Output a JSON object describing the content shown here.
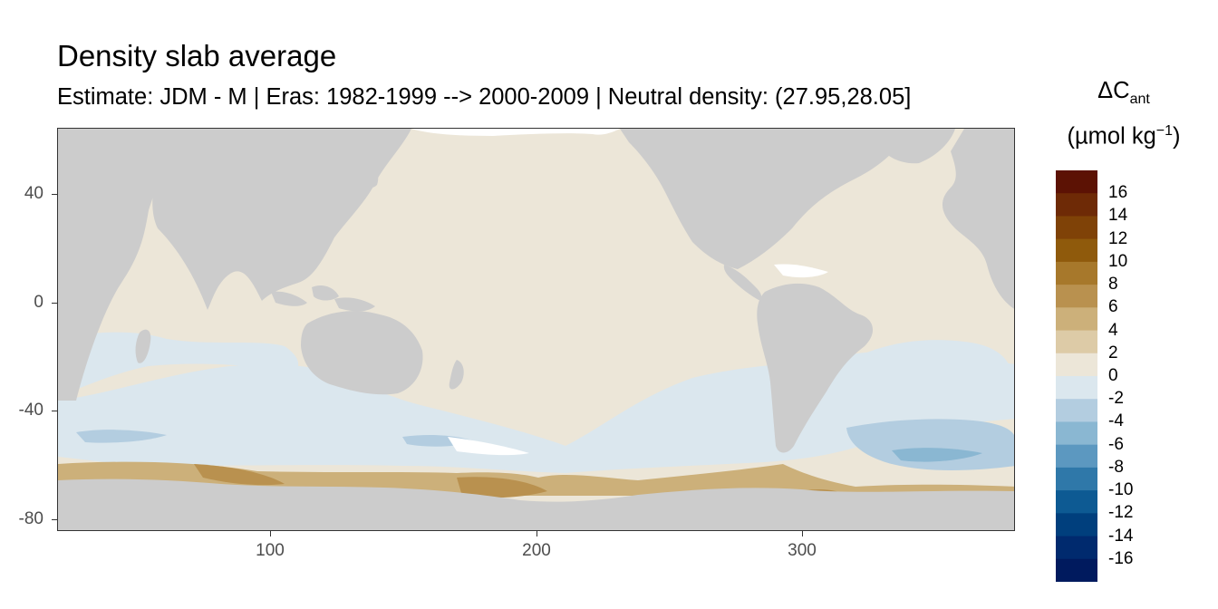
{
  "title": "Density slab average",
  "subtitle": "Estimate: JDM - M | Eras: 1982-1999 --> 2000-2009 | Neutral density: (27.95,28.05]",
  "chart_data": {
    "type": "map",
    "xlim": [
      20,
      380
    ],
    "ylim": [
      -85,
      65
    ],
    "x_ticks": [
      100,
      200,
      300
    ],
    "y_ticks": [
      40,
      0,
      -40,
      -80
    ],
    "grid": true,
    "land_color": "#cccccc",
    "legend": {
      "position": "right",
      "title_main": "ΔC",
      "title_sub": "ant",
      "unit_prefix": "(µmol kg",
      "unit_sup": "−1",
      "unit_suffix": ")",
      "labels": [
        "16",
        "14",
        "12",
        "10",
        "8",
        "6",
        "4",
        "2",
        "0",
        "-2",
        "-4",
        "-6",
        "-8",
        "-10",
        "-12",
        "-14",
        "-16"
      ],
      "colors": [
        "#5c1204",
        "#6e2a06",
        "#7f4207",
        "#8f5a0c",
        "#a7782b",
        "#b9914f",
        "#ccb07a",
        "#ddcba7",
        "#ece6d8",
        "#dbe7ee",
        "#b3cde0",
        "#8ab7d2",
        "#5c98c0",
        "#2f78a9",
        "#0d5a93",
        "#003f7d",
        "#002a6e",
        "#001a5e"
      ]
    }
  }
}
